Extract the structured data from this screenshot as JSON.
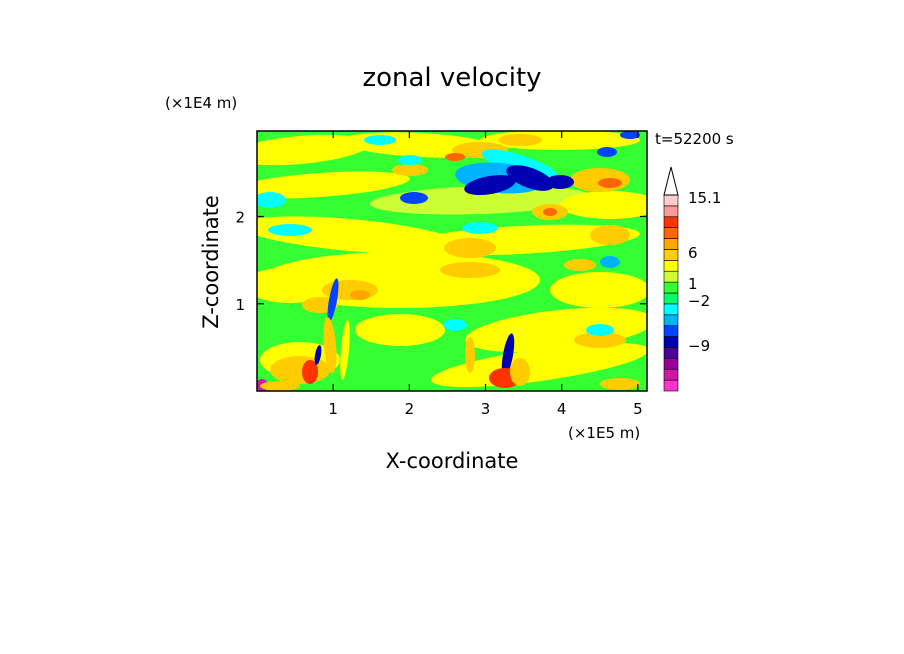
{
  "chart_data": {
    "type": "heatmap",
    "title": "zonal velocity",
    "xlabel": "X-coordinate",
    "ylabel": "Z-coordinate",
    "x_scale_label": "(×1E5 m)",
    "y_scale_label": "(×1E4 m)",
    "time_label": "t=52200 s",
    "xlim": [
      0,
      5.12
    ],
    "ylim": [
      0,
      2.98
    ],
    "x_ticks": [
      "1",
      "2",
      "3",
      "4",
      "5"
    ],
    "y_ticks": [
      "1",
      "2"
    ],
    "x_tick_values": [
      1,
      2,
      3,
      4,
      5
    ],
    "y_tick_values": [
      1,
      2
    ],
    "colorbar": {
      "levels": [
        {
          "color": "#ff33cc"
        },
        {
          "color": "#cc1aa6"
        },
        {
          "color": "#990099"
        },
        {
          "color": "#4d0099"
        },
        {
          "color": "#0000b3"
        },
        {
          "color": "#0044ff"
        },
        {
          "color": "#00b3ff"
        },
        {
          "color": "#00ffff"
        },
        {
          "color": "#00ff66"
        },
        {
          "color": "#33ff33"
        },
        {
          "color": "#ccff33"
        },
        {
          "color": "#ffff00"
        },
        {
          "color": "#ffcc00"
        },
        {
          "color": "#ffa500"
        },
        {
          "color": "#ff6600"
        },
        {
          "color": "#ff3300"
        },
        {
          "color": "#ff9999"
        },
        {
          "color": "#ffcccc"
        }
      ],
      "labels": [
        "15.1",
        "6",
        "1",
        "−2",
        "−9"
      ]
    }
  }
}
